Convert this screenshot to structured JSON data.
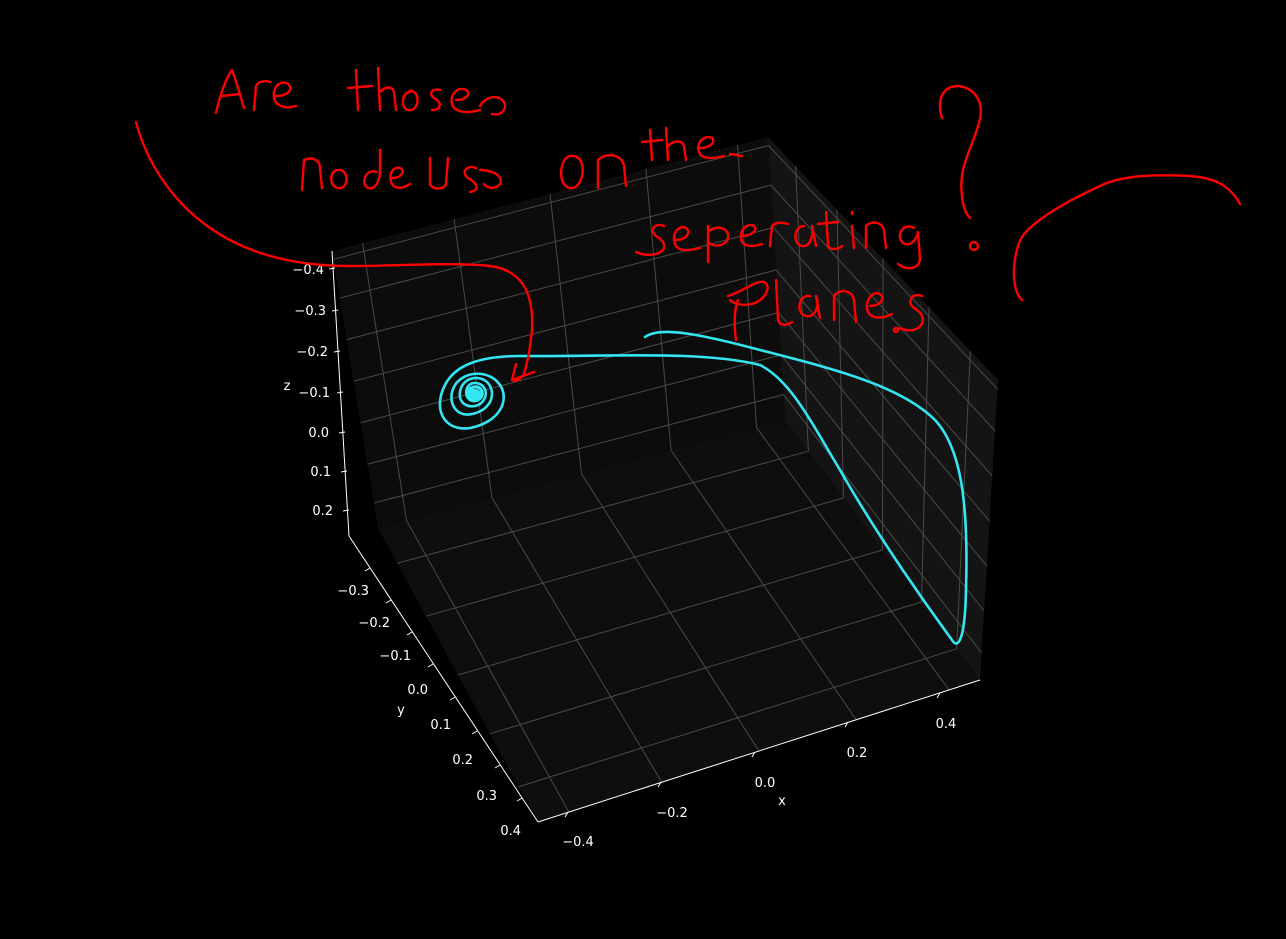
{
  "chart_data": {
    "type": "line",
    "projection": "3d",
    "background": "#000000",
    "pane_color": "#111111",
    "grid": true,
    "axes": {
      "x": {
        "label": "x",
        "ticks": [
          "−0.4",
          "−0.2",
          "0.0",
          "0.2",
          "0.4"
        ],
        "range": [
          -0.45,
          0.45
        ]
      },
      "y": {
        "label": "y",
        "ticks": [
          "−0.3",
          "−0.2",
          "−0.1",
          "0.0",
          "0.1",
          "0.2",
          "0.3",
          "0.4"
        ],
        "range": [
          -0.35,
          0.42
        ]
      },
      "z": {
        "label": "z",
        "ticks": [
          "−0.4",
          "−0.3",
          "−0.2",
          "−0.1",
          "0.0",
          "0.1",
          "0.2"
        ],
        "range": [
          -0.42,
          0.22
        ]
      }
    },
    "series": [
      {
        "color": "#33e6f2",
        "description_points": "trajectory spiralling into a focus near x≈-0.38, z≈-0.10"
      }
    ]
  },
  "annotation": {
    "color": "#ff0000",
    "text": "Are those nodes on the separating planes?"
  }
}
